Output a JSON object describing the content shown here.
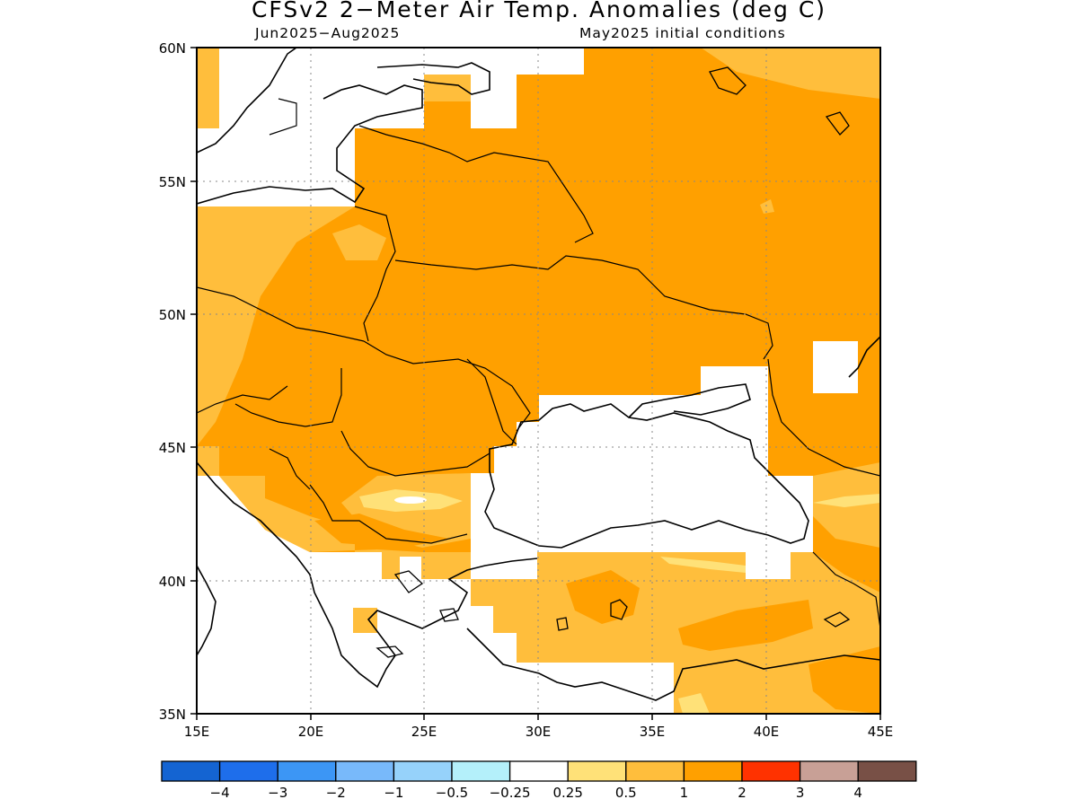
{
  "map": {
    "title": "CFSv2 2−Meter Air Temp. Anomalies (deg C)",
    "period": "Jun2025−Aug2025",
    "initial_conditions": "May2025 initial conditions",
    "extent": {
      "lon_min": 15,
      "lon_max": 45,
      "lat_min": 35,
      "lat_max": 60
    },
    "lat_ticks": [
      "35N",
      "40N",
      "45N",
      "50N",
      "55N",
      "60N"
    ],
    "lon_ticks": [
      "15E",
      "20E",
      "25E",
      "30E",
      "35E",
      "40E",
      "45E"
    ],
    "grid": "dotted"
  },
  "legend": {
    "labels": [
      "−4",
      "−3",
      "−2",
      "−1",
      "−0.5",
      "−0.25",
      "0.25",
      "0.5",
      "1",
      "2",
      "3",
      "4"
    ],
    "colors": [
      "#1464d2",
      "#1e6eeb",
      "#3c96f5",
      "#78b9fa",
      "#96d2fa",
      "#b4f0fa",
      "#ffffff",
      "#ffe178",
      "#ffbe3c",
      "#ffa000",
      "#ff3200",
      "#c8a096",
      "#785046"
    ]
  },
  "fill_colors": {
    "light": "#ffe178",
    "medium": "#ffbe3c",
    "strong": "#ffa000"
  }
}
